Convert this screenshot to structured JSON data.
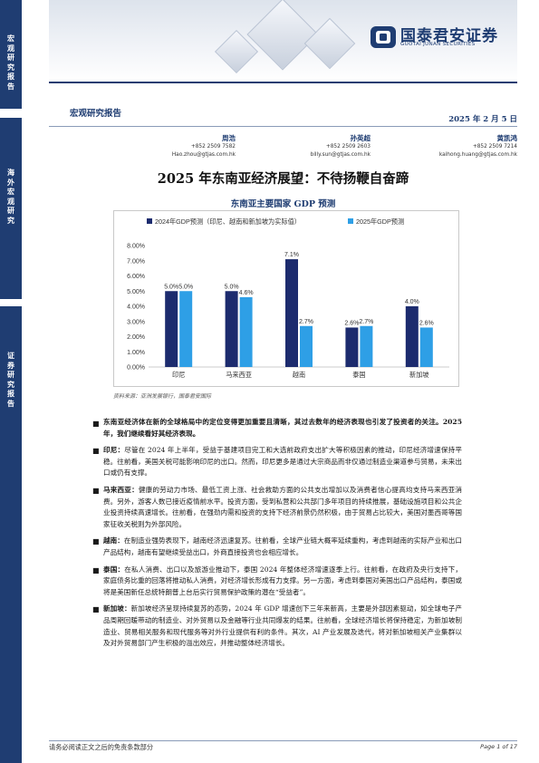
{
  "sidebar": {
    "block1": [
      "宏",
      "观",
      "研",
      "究",
      "报",
      "告"
    ],
    "block2": [
      "海",
      "外",
      "宏",
      "观",
      "研",
      "究"
    ],
    "block3": [
      "证",
      "券",
      "研",
      "究",
      "报",
      "告"
    ]
  },
  "logo": {
    "cn": "国泰君安证券",
    "en": "GUOTAI JUNAN SECURITIES"
  },
  "report_type": "宏观研究报告",
  "date": "2025 年 2 月 5 日",
  "analysts": [
    {
      "name": "周浩",
      "phone": "+852 2509 7582",
      "email": "Hao.zhou@gtjas.com.hk"
    },
    {
      "name": "孙英超",
      "phone": "+852 2509 2603",
      "email": "billy.sun@gtjas.com.hk"
    },
    {
      "name": "黄凯鸿",
      "phone": "+852 2509 7214",
      "email": "kaihong.huang@gtjas.com.hk"
    }
  ],
  "title": "2025 年东南亚经济展望：不待扬鞭自奋蹄",
  "chart_title": "东南亚主要国家 GDP 预测",
  "chart_data": {
    "type": "bar",
    "categories": [
      "印尼",
      "马来西亚",
      "越南",
      "泰国",
      "新加坡"
    ],
    "series": [
      {
        "name": "2024年GDP预测（印尼、越南和新加坡为实际值）",
        "values": [
          5.0,
          5.0,
          7.1,
          2.6,
          4.0
        ],
        "labels": [
          "5.0%",
          "5.0%",
          "7.1%",
          "2.6%",
          "4.0%"
        ],
        "color": "#1c2b6e"
      },
      {
        "name": "2025年GDP预测",
        "values": [
          5.0,
          4.6,
          2.7,
          2.7,
          2.6
        ],
        "labels": [
          "5.0%",
          "4.6%",
          "2.7%",
          "2.7%",
          "2.6%"
        ],
        "color": "#2e9fe6"
      }
    ],
    "yticks": [
      "0.00%",
      "1.00%",
      "2.00%",
      "3.00%",
      "4.00%",
      "5.00%",
      "6.00%",
      "7.00%",
      "8.00%"
    ],
    "ylim": [
      0,
      8
    ],
    "legend": "top",
    "grid": false
  },
  "source": "资料来源：亚洲发展银行，国泰君安国际",
  "bullets": [
    {
      "lead": "",
      "text": "东南亚经济体在新的全球格局中的定位变得更加重要且清晰，其过去数年的经济表现也引发了投资者的关注。2025 年，我们继续看好其经济表现。"
    },
    {
      "lead": "印尼：",
      "text": "尽管在 2024 年上半年，受益于基建项目完工和大选前政府支出扩大等积极因素的推动，印尼经济增速保持平稳。往前看，美国关税可能影响印尼的出口。然而，印尼更多是通过大宗商品而非仅通过制造业渠道参与贸易，未来出口或仍有支撑。"
    },
    {
      "lead": "马来西亚：",
      "text": "健康的劳动力市场、最低工资上涨、社会救助方面的公共支出增加以及消费者信心提高均支持马来西亚消费。另外，游客人数已接近疫情前水平。投资方面，受到私营和公共部门多年项目的持续推展，基础设施项目和公共企业投资持续高速增长。往前看，在强劲内需和投资的支持下经济前景仍然积极，由于贸易占比较大，美国对墨西哥等国家征收关税则为外部风险。"
    },
    {
      "lead": "越南：",
      "text": "在制造业强势表现下，越南经济迅速复苏。往前看，全球产业链大概率延续重构，考虑到越南的实际产业和出口产品结构，越南有望继续受益出口，外商直接投资也会相应增长。"
    },
    {
      "lead": "泰国：",
      "text": "在私人消费、出口以及旅游业推动下，泰国 2024 年整体经济增速逐季上行。往前看，在政府及央行支持下，家庭债务比重的回落将推动私人消费，对经济增长形成有力支撑。另一方面，考虑到泰国对美国出口产品结构，泰国或将是美国新任总统特朗普上台后实行贸易保护政策的潜在“受益者”。"
    },
    {
      "lead": "新加坡：",
      "text": "新加坡经济呈现持续复苏的态势，2024 年 GDP 增速创下三年来新高，主要是外部因素驱动，如全球电子产品周期回暖带动的制造业、对外贸易以及金融等行业共同爆发的结果。往前看，全球经济增长将保持稳定，为新加坡制造业、贸易相关服务和现代服务等对外行业提供有利的条件。其次，AI 产业发展及迭代，将对新加坡相关产业集群以及对外贸易部门产生积极的溢出效应，并推动整体经济增长。"
    }
  ],
  "footer": {
    "left": "请务必阅读正文之后的免责条款部分",
    "right": "Page 1 of 17"
  }
}
